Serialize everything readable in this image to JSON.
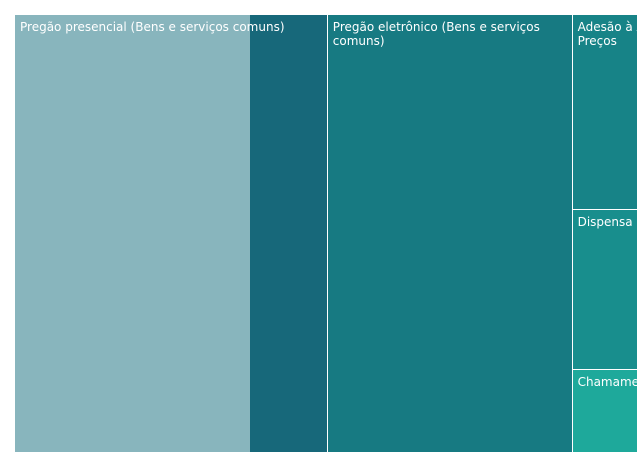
{
  "chart_data": {
    "type": "treemap",
    "categories": [
      "Pregão presencial (Bens e serviços comuns)",
      "Pregão eletrônico (Bens e serviços comuns)",
      "Adesão à Ata de Preços",
      "Dispensa",
      "Chamamento"
    ],
    "values": [
      46,
      36,
      8,
      6.6,
      3.4
    ],
    "colors": [
      "#88b5bd",
      "#177a82",
      "#178387",
      "#188e8d",
      "#1ea99b"
    ]
  }
}
